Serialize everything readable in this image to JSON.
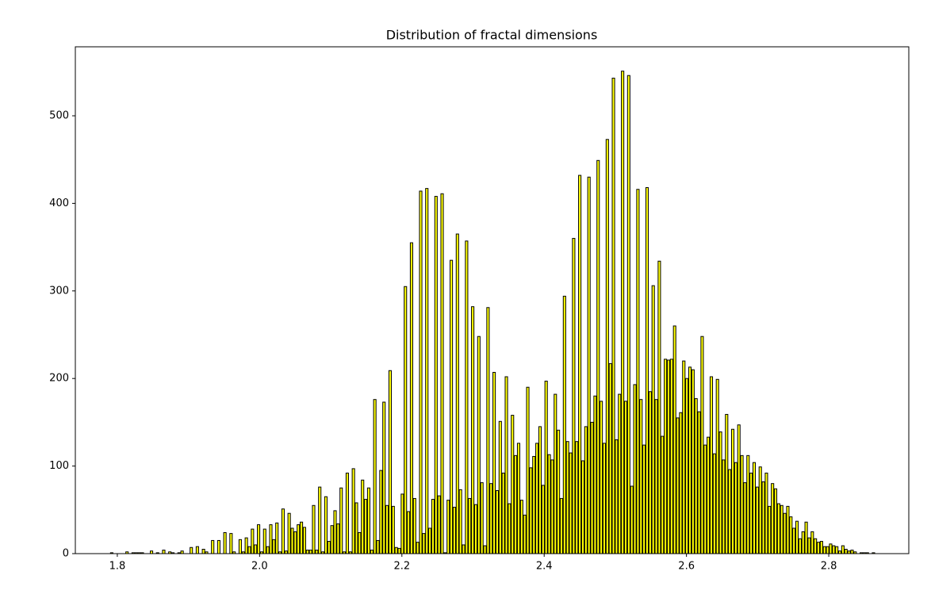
{
  "chart_data": {
    "type": "histogram",
    "title": "Distribution of fractal dimensions",
    "bins": [
      1.79,
      1.7943,
      1.7986,
      1.8029,
      1.8072,
      1.8115,
      1.8158,
      1.8201,
      1.8244,
      1.8287,
      1.833,
      1.8373,
      1.8416,
      1.8459,
      1.8502,
      1.8545,
      1.8588,
      1.8631,
      1.8674,
      1.8717,
      1.876,
      1.8803,
      1.8846,
      1.8889,
      1.8932,
      1.8975,
      1.9018,
      1.9061,
      1.9104,
      1.9147,
      1.919,
      1.9233,
      1.9276,
      1.9319,
      1.9362,
      1.9405,
      1.9448,
      1.9491,
      1.9534,
      1.9577,
      1.962,
      1.9663,
      1.9706,
      1.9749,
      1.9792,
      1.9835,
      1.9878,
      1.9921,
      1.9964,
      2.0007,
      2.005,
      2.0093,
      2.0136,
      2.0179,
      2.0222,
      2.0265,
      2.0308,
      2.0351,
      2.0394,
      2.0437,
      2.048,
      2.0523,
      2.0566,
      2.0609,
      2.0652,
      2.0695,
      2.0738,
      2.0781,
      2.0824,
      2.0867,
      2.091,
      2.0953,
      2.0996,
      2.1039,
      2.1082,
      2.1125,
      2.1168,
      2.1211,
      2.1254,
      2.1297,
      2.134,
      2.1383,
      2.1426,
      2.1469,
      2.1512,
      2.1555,
      2.1598,
      2.1641,
      2.1684,
      2.1727,
      2.177,
      2.1813,
      2.1856,
      2.1899,
      2.1942,
      2.1985,
      2.2028,
      2.2071,
      2.2114,
      2.2157,
      2.22,
      2.2243,
      2.2286,
      2.2329,
      2.2372,
      2.2415,
      2.2458,
      2.2501,
      2.2544,
      2.2587,
      2.263,
      2.2673,
      2.2716,
      2.2759,
      2.2802,
      2.2845,
      2.2888,
      2.2931,
      2.2974,
      2.3017,
      2.306,
      2.3103,
      2.3146,
      2.3189,
      2.3232,
      2.3275,
      2.3318,
      2.3361,
      2.3404,
      2.3447,
      2.349,
      2.3533,
      2.3576,
      2.3619,
      2.3662,
      2.3705,
      2.3748,
      2.3791,
      2.3834,
      2.3877,
      2.392,
      2.3963,
      2.4006,
      2.4049,
      2.4092,
      2.4135,
      2.4178,
      2.4221,
      2.4264,
      2.4307,
      2.435,
      2.4393,
      2.4436,
      2.4479,
      2.4522,
      2.4565,
      2.4608,
      2.4651,
      2.4694,
      2.4737,
      2.478,
      2.4823,
      2.4866,
      2.4909,
      2.4952,
      2.4995,
      2.5038,
      2.5081,
      2.5124,
      2.5167,
      2.521,
      2.5253,
      2.5296,
      2.5339,
      2.5382,
      2.5425,
      2.5468,
      2.5511,
      2.5554,
      2.5597,
      2.564,
      2.5683,
      2.5726,
      2.5769,
      2.5812,
      2.5855,
      2.5898,
      2.5941,
      2.5984,
      2.6027,
      2.607,
      2.6113,
      2.6156,
      2.6199,
      2.6242,
      2.6285,
      2.6328,
      2.6371,
      2.6414,
      2.6457,
      2.65,
      2.6543,
      2.6586,
      2.6629,
      2.6672,
      2.6715,
      2.6758,
      2.6801,
      2.6844,
      2.6887,
      2.693,
      2.6973,
      2.7016,
      2.7059,
      2.7102,
      2.7145,
      2.7188,
      2.7231,
      2.7274,
      2.7317,
      2.736,
      2.7403,
      2.7446,
      2.7489,
      2.7532,
      2.7575,
      2.7618,
      2.7661,
      2.7704,
      2.7747,
      2.779,
      2.7833,
      2.7876,
      2.7919,
      2.7962,
      2.8005,
      2.8048,
      2.8091,
      2.8134,
      2.8177,
      2.822,
      2.8263,
      2.8306,
      2.8349,
      2.8392,
      2.8435,
      2.8478,
      2.8521,
      2.8564,
      2.8607,
      2.865
    ],
    "values": [
      1,
      0,
      0,
      0,
      0,
      2,
      0,
      1,
      1,
      1,
      1,
      0,
      0,
      3,
      0,
      1,
      0,
      4,
      0,
      2,
      1,
      0,
      1,
      3,
      0,
      0,
      7,
      0,
      8,
      0,
      5,
      2,
      0,
      15,
      0,
      15,
      0,
      24,
      0,
      23,
      2,
      0,
      16,
      2,
      18,
      8,
      28,
      10,
      33,
      2,
      28,
      8,
      33,
      16,
      35,
      2,
      51,
      3,
      46,
      29,
      25,
      33,
      36,
      30,
      4,
      4,
      55,
      4,
      76,
      2,
      65,
      14,
      32,
      49,
      34,
      75,
      2,
      92,
      2,
      97,
      58,
      24,
      84,
      62,
      75,
      4,
      176,
      15,
      95,
      173,
      55,
      209,
      54,
      7,
      6,
      68,
      305,
      48,
      355,
      63,
      13,
      414,
      23,
      417,
      29,
      62,
      408,
      66,
      411,
      1,
      61,
      335,
      53,
      365,
      73,
      10,
      357,
      63,
      282,
      56,
      248,
      81,
      9,
      281,
      80,
      207,
      72,
      151,
      92,
      202,
      57,
      158,
      112,
      126,
      61,
      44,
      190,
      98,
      111,
      126,
      145,
      78,
      197,
      113,
      107,
      182,
      141,
      63,
      294,
      128,
      115,
      360,
      128,
      432,
      106,
      145,
      430,
      150,
      180,
      449,
      174,
      126,
      473,
      217,
      543,
      130,
      182,
      551,
      174,
      546,
      77,
      193,
      416,
      176,
      124,
      418,
      185,
      306,
      176,
      334,
      134,
      222,
      221,
      222,
      260,
      155,
      161,
      220,
      200,
      213,
      210,
      177,
      162,
      248,
      124,
      133,
      202,
      114,
      199,
      139,
      107,
      159,
      96,
      142,
      104,
      147,
      112,
      81,
      112,
      92,
      104,
      76,
      99,
      82,
      92,
      54,
      80,
      74,
      57,
      55,
      46,
      54,
      42,
      29,
      37,
      17,
      25,
      36,
      18,
      25,
      17,
      13,
      14,
      8,
      8,
      11,
      9,
      8,
      3,
      9,
      5,
      3,
      4,
      2,
      0,
      1,
      1,
      1,
      0,
      1
    ],
    "color": "#ffff00",
    "edgecolor": "#000000",
    "xlim": [
      1.741,
      2.9125
    ],
    "ylim": [
      0,
      578.8
    ],
    "xticks": [
      1.8,
      {
        "value": 2,
        "label": "2.0"
      },
      2.2,
      2.4,
      2.6,
      2.8
    ],
    "yticks": [
      0,
      100,
      200,
      300,
      400,
      500
    ]
  }
}
